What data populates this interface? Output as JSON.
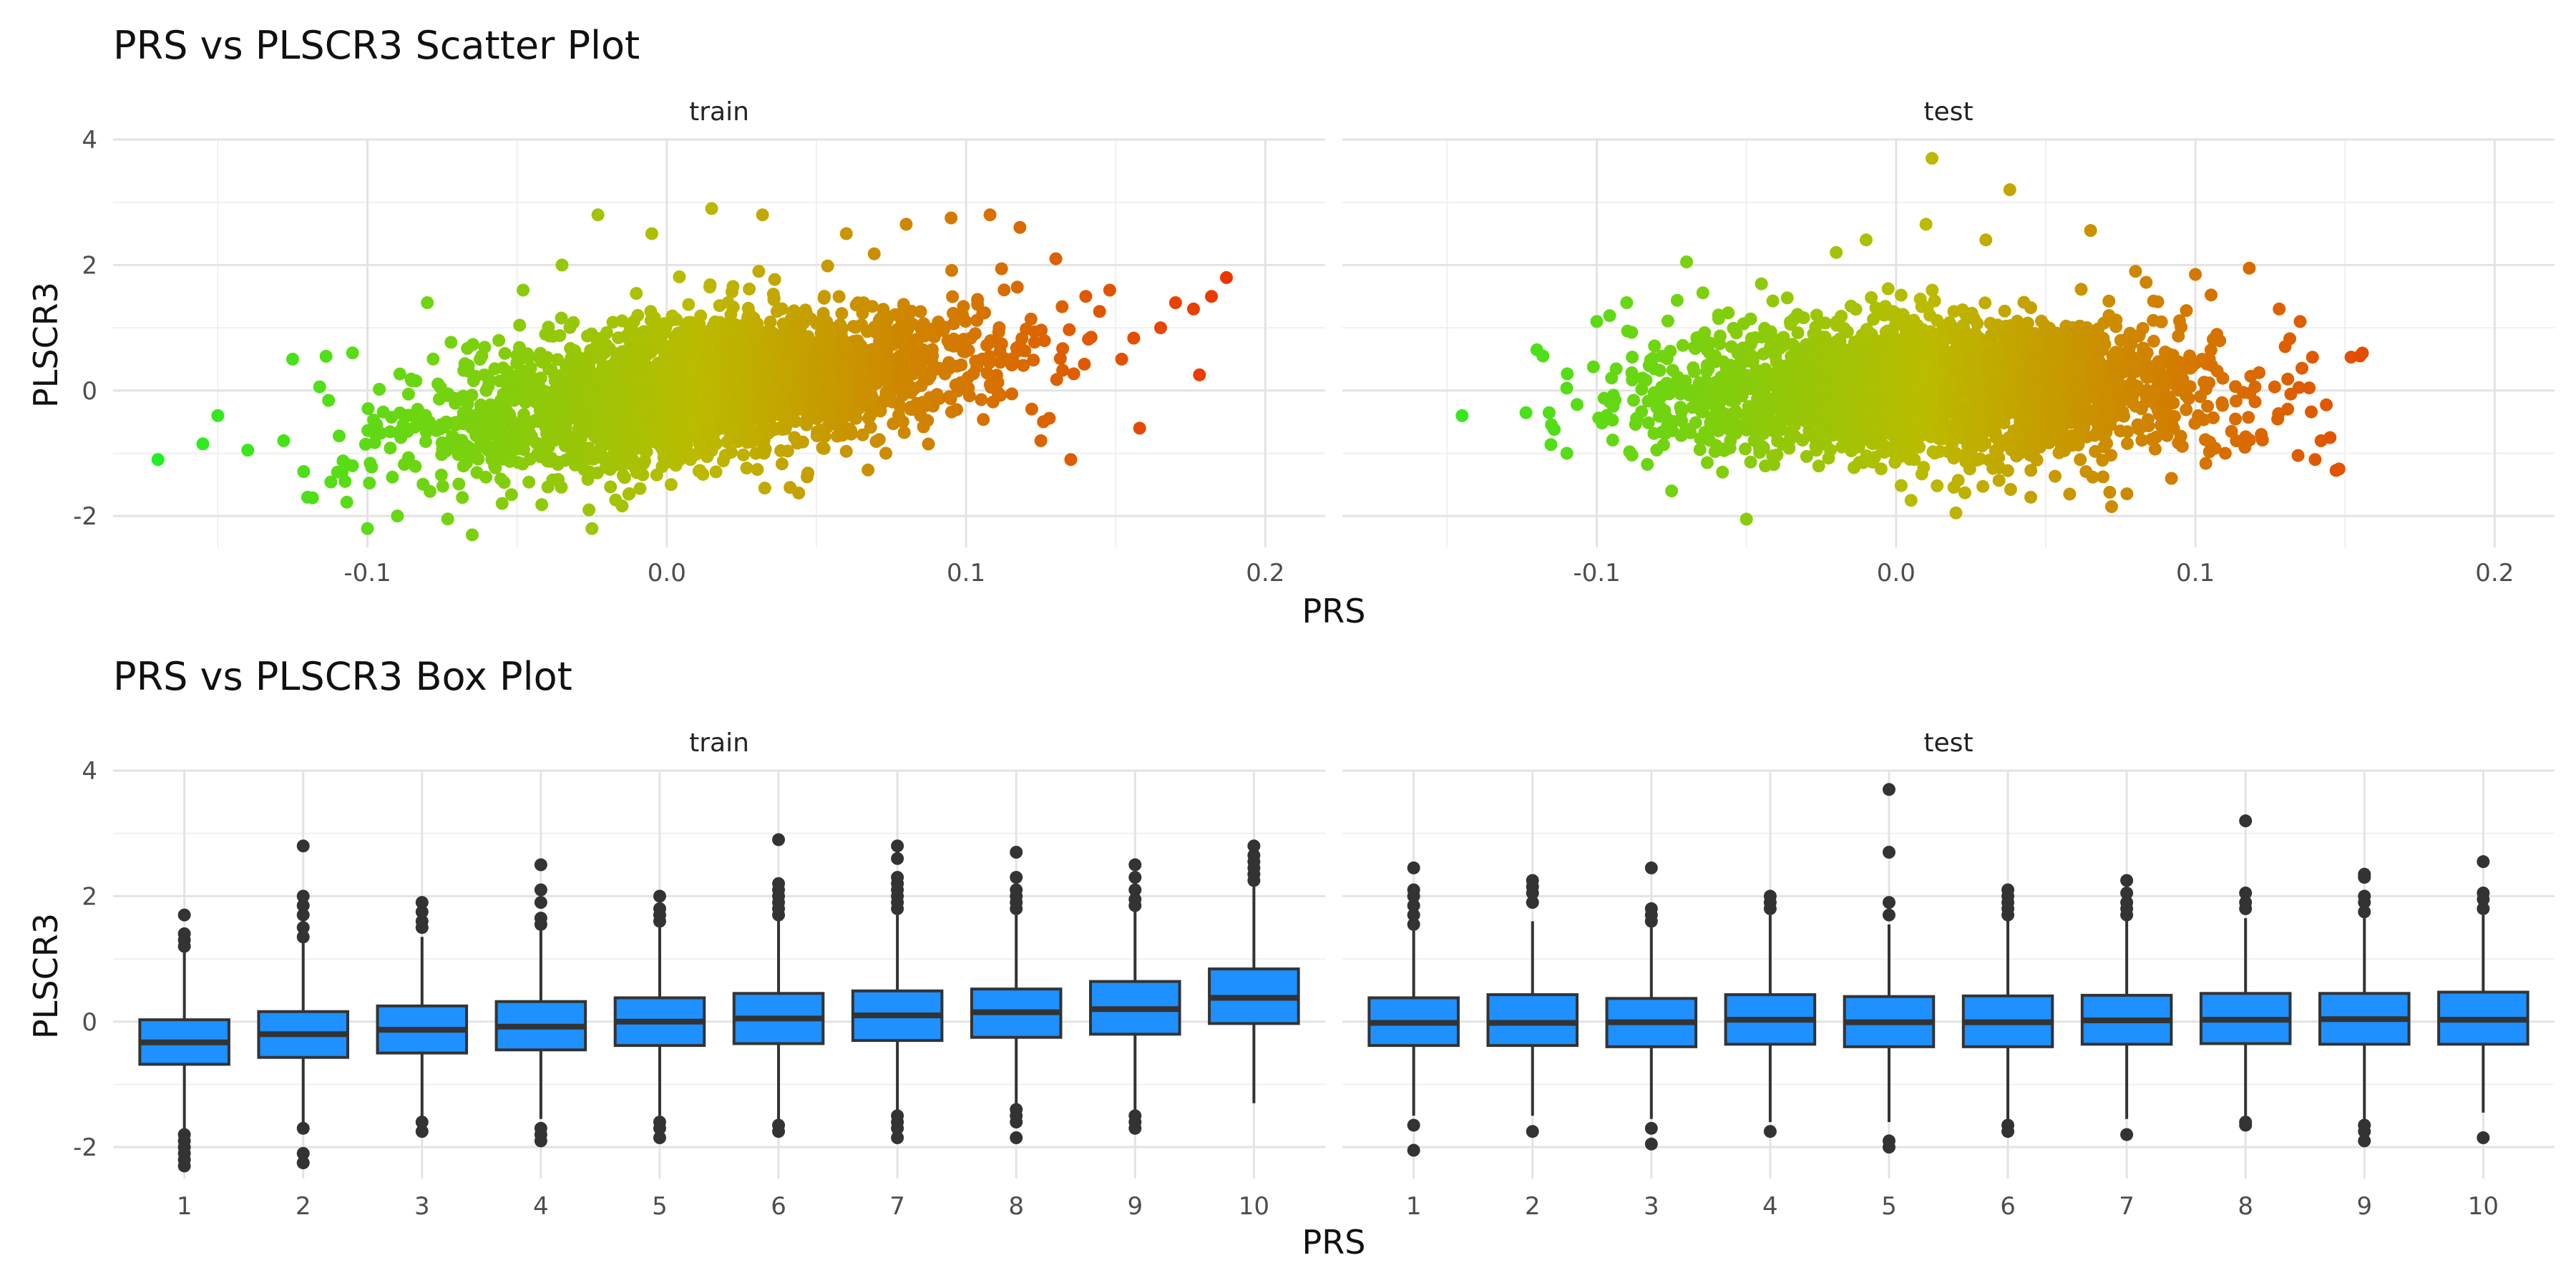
{
  "chart_data": [
    {
      "type": "scatter",
      "title": "PRS vs PLSCR3 Scatter Plot",
      "xlabel": "PRS",
      "ylabel": "PLSCR3",
      "xlim": [
        -0.185,
        0.22
      ],
      "ylim": [
        -2.5,
        4
      ],
      "xticks": [
        -0.1,
        0.0,
        0.1,
        0.2
      ],
      "xtick_labels": [
        "-0.1",
        "0.0",
        "0.1",
        "0.2"
      ],
      "yticks": [
        -2,
        0,
        2,
        4
      ],
      "ytick_labels": [
        "-2",
        "0",
        "2",
        "4"
      ],
      "color_scale": {
        "low": "#22ee22",
        "mid": "#bbbb00",
        "high": "#ee3300",
        "variable": "PRS"
      },
      "grid": true,
      "legend": "none",
      "panels": [
        {
          "name": "train",
          "trend": {
            "intercept": -0.05,
            "slope": 6.5,
            "sd": 0.55
          },
          "points": [
            [
              -0.17,
              -1.1
            ],
            [
              -0.155,
              -0.85
            ],
            [
              -0.15,
              -0.4
            ],
            [
              -0.14,
              -0.95
            ],
            [
              -0.128,
              -0.8
            ],
            [
              -0.125,
              0.5
            ],
            [
              -0.12,
              -1.7
            ],
            [
              -0.11,
              -1.3
            ],
            [
              -0.105,
              0.6
            ],
            [
              -0.1,
              -2.2
            ],
            [
              -0.09,
              -2.0
            ],
            [
              -0.08,
              1.4
            ],
            [
              -0.065,
              -2.3
            ],
            [
              -0.055,
              -1.8
            ],
            [
              -0.048,
              1.6
            ],
            [
              -0.035,
              2.0
            ],
            [
              -0.025,
              -2.2
            ],
            [
              -0.023,
              2.8
            ],
            [
              -0.005,
              2.5
            ],
            [
              0.015,
              2.9
            ],
            [
              0.032,
              2.8
            ],
            [
              0.06,
              2.5
            ],
            [
              0.08,
              2.65
            ],
            [
              0.095,
              2.75
            ],
            [
              0.108,
              2.8
            ],
            [
              0.118,
              2.6
            ],
            [
              0.125,
              -0.8
            ],
            [
              0.13,
              2.1
            ],
            [
              0.135,
              -1.1
            ],
            [
              0.14,
              1.5
            ],
            [
              0.148,
              1.6
            ],
            [
              0.152,
              0.5
            ],
            [
              0.158,
              -0.6
            ],
            [
              0.165,
              1.0
            ],
            [
              0.17,
              1.4
            ],
            [
              0.176,
              1.3
            ],
            [
              0.178,
              0.25
            ],
            [
              0.182,
              1.5
            ],
            [
              0.187,
              1.8
            ]
          ]
        },
        {
          "name": "test",
          "trend": {
            "intercept": 0.0,
            "slope": 0.5,
            "sd": 0.55
          },
          "points": [
            [
              -0.145,
              -0.4
            ],
            [
              -0.12,
              0.65
            ],
            [
              -0.118,
              0.55
            ],
            [
              -0.11,
              -1.0
            ],
            [
              -0.1,
              1.1
            ],
            [
              -0.09,
              1.4
            ],
            [
              -0.075,
              -1.6
            ],
            [
              -0.07,
              2.05
            ],
            [
              -0.058,
              -1.3
            ],
            [
              -0.05,
              -2.05
            ],
            [
              -0.045,
              1.7
            ],
            [
              -0.02,
              2.2
            ],
            [
              -0.01,
              2.4
            ],
            [
              0.005,
              -1.75
            ],
            [
              0.01,
              2.65
            ],
            [
              0.012,
              3.7
            ],
            [
              0.02,
              -1.95
            ],
            [
              0.03,
              2.4
            ],
            [
              0.038,
              3.2
            ],
            [
              0.045,
              -1.7
            ],
            [
              0.058,
              -1.65
            ],
            [
              0.065,
              2.55
            ],
            [
              0.072,
              -1.85
            ],
            [
              0.08,
              1.9
            ],
            [
              0.092,
              -1.4
            ],
            [
              0.1,
              1.85
            ],
            [
              0.11,
              -1.0
            ],
            [
              0.118,
              1.95
            ],
            [
              0.122,
              -0.7
            ],
            [
              0.128,
              1.3
            ],
            [
              0.13,
              0.7
            ],
            [
              0.135,
              1.1
            ],
            [
              0.14,
              -1.1
            ],
            [
              0.142,
              -0.8
            ],
            [
              0.145,
              -0.75
            ],
            [
              0.148,
              -1.25
            ],
            [
              0.155,
              0.55
            ]
          ]
        }
      ]
    },
    {
      "type": "box",
      "title": "PRS vs PLSCR3 Box Plot",
      "xlabel": "PRS",
      "ylabel": "PLSCR3",
      "categories": [
        "1",
        "2",
        "3",
        "4",
        "5",
        "6",
        "7",
        "8",
        "9",
        "10"
      ],
      "ylim": [
        -2.5,
        4
      ],
      "yticks": [
        -2,
        0,
        2,
        4
      ],
      "ytick_labels": [
        "-2",
        "0",
        "2",
        "4"
      ],
      "fill": "#1e90ff",
      "grid": true,
      "panels": [
        {
          "name": "train",
          "boxes": [
            {
              "q1": -0.68,
              "median": -0.33,
              "q3": 0.03,
              "whisker_low": -1.72,
              "whisker_high": 1.1,
              "outliers_low": [
                -1.8,
                -1.9,
                -2.0,
                -2.1,
                -2.2,
                -2.3
              ],
              "outliers_high": [
                1.2,
                1.3,
                1.4,
                1.7
              ]
            },
            {
              "q1": -0.57,
              "median": -0.2,
              "q3": 0.16,
              "whisker_low": -1.65,
              "whisker_high": 1.25,
              "outliers_low": [
                -1.7,
                -2.1,
                -2.25
              ],
              "outliers_high": [
                1.35,
                1.5,
                1.7,
                1.85,
                2.0,
                2.8
              ]
            },
            {
              "q1": -0.5,
              "median": -0.13,
              "q3": 0.25,
              "whisker_low": -1.55,
              "whisker_high": 1.35,
              "outliers_low": [
                -1.6,
                -1.75
              ],
              "outliers_high": [
                1.5,
                1.6,
                1.75,
                1.9
              ]
            },
            {
              "q1": -0.45,
              "median": -0.08,
              "q3": 0.32,
              "whisker_low": -1.55,
              "whisker_high": 1.45,
              "outliers_low": [
                -1.7,
                -1.8,
                -1.9
              ],
              "outliers_high": [
                1.55,
                1.65,
                1.9,
                2.1,
                2.5
              ]
            },
            {
              "q1": -0.38,
              "median": 0.0,
              "q3": 0.38,
              "whisker_low": -1.5,
              "whisker_high": 1.5,
              "outliers_low": [
                -1.6,
                -1.7,
                -1.85
              ],
              "outliers_high": [
                1.6,
                1.7,
                1.8,
                2.0
              ]
            },
            {
              "q1": -0.35,
              "median": 0.05,
              "q3": 0.45,
              "whisker_low": -1.55,
              "whisker_high": 1.6,
              "outliers_low": [
                -1.65,
                -1.75
              ],
              "outliers_high": [
                1.7,
                1.8,
                1.9,
                2.0,
                2.1,
                2.2,
                2.9
              ]
            },
            {
              "q1": -0.3,
              "median": 0.1,
              "q3": 0.49,
              "whisker_low": -1.45,
              "whisker_high": 1.7,
              "outliers_low": [
                -1.5,
                -1.6,
                -1.7,
                -1.85
              ],
              "outliers_high": [
                1.8,
                1.9,
                2.0,
                2.1,
                2.2,
                2.3,
                2.6,
                2.8
              ]
            },
            {
              "q1": -0.25,
              "median": 0.15,
              "q3": 0.52,
              "whisker_low": -1.35,
              "whisker_high": 1.7,
              "outliers_low": [
                -1.4,
                -1.5,
                -1.6,
                -1.85
              ],
              "outliers_high": [
                1.8,
                1.9,
                2.0,
                2.1,
                2.3,
                2.7
              ]
            },
            {
              "q1": -0.2,
              "median": 0.2,
              "q3": 0.64,
              "whisker_low": -1.4,
              "whisker_high": 1.8,
              "outliers_low": [
                -1.5,
                -1.6,
                -1.7
              ],
              "outliers_high": [
                1.85,
                1.95,
                2.1,
                2.3,
                2.5
              ]
            },
            {
              "q1": -0.03,
              "median": 0.38,
              "q3": 0.84,
              "whisker_low": -1.3,
              "whisker_high": 2.15,
              "outliers_low": [],
              "outliers_high": [
                2.25,
                2.35,
                2.45,
                2.55,
                2.65,
                2.8
              ]
            }
          ]
        },
        {
          "name": "test",
          "boxes": [
            {
              "q1": -0.38,
              "median": -0.02,
              "q3": 0.38,
              "whisker_low": -1.5,
              "whisker_high": 1.45,
              "outliers_low": [
                -1.65,
                -2.05
              ],
              "outliers_high": [
                1.55,
                1.7,
                1.85,
                2.0,
                2.1,
                2.45
              ]
            },
            {
              "q1": -0.38,
              "median": -0.02,
              "q3": 0.43,
              "whisker_low": -1.5,
              "whisker_high": 1.6,
              "outliers_low": [
                -1.75
              ],
              "outliers_high": [
                1.9,
                2.05,
                2.15,
                2.25
              ]
            },
            {
              "q1": -0.4,
              "median": -0.01,
              "q3": 0.37,
              "whisker_low": -1.55,
              "whisker_high": 1.5,
              "outliers_low": [
                -1.7,
                -1.95
              ],
              "outliers_high": [
                1.6,
                1.7,
                1.8,
                2.45
              ]
            },
            {
              "q1": -0.36,
              "median": 0.03,
              "q3": 0.43,
              "whisker_low": -1.6,
              "whisker_high": 1.7,
              "outliers_low": [
                -1.75
              ],
              "outliers_high": [
                1.8,
                1.9,
                2.0
              ]
            },
            {
              "q1": -0.4,
              "median": -0.01,
              "q3": 0.4,
              "whisker_low": -1.6,
              "whisker_high": 1.55,
              "outliers_low": [
                -1.9,
                -2.0
              ],
              "outliers_high": [
                1.7,
                1.9,
                2.7,
                3.7
              ]
            },
            {
              "q1": -0.4,
              "median": -0.01,
              "q3": 0.41,
              "whisker_low": -1.55,
              "whisker_high": 1.6,
              "outliers_low": [
                -1.65,
                -1.75
              ],
              "outliers_high": [
                1.7,
                1.8,
                1.9,
                2.0,
                2.1
              ]
            },
            {
              "q1": -0.36,
              "median": 0.02,
              "q3": 0.42,
              "whisker_low": -1.55,
              "whisker_high": 1.6,
              "outliers_low": [
                -1.8
              ],
              "outliers_high": [
                1.7,
                1.8,
                1.9,
                2.05,
                2.25
              ]
            },
            {
              "q1": -0.35,
              "median": 0.03,
              "q3": 0.45,
              "whisker_low": -1.5,
              "whisker_high": 1.65,
              "outliers_low": [
                -1.6,
                -1.65
              ],
              "outliers_high": [
                1.8,
                1.9,
                2.05,
                3.2
              ]
            },
            {
              "q1": -0.36,
              "median": 0.04,
              "q3": 0.45,
              "whisker_low": -1.55,
              "whisker_high": 1.65,
              "outliers_low": [
                -1.65,
                -1.75,
                -1.9
              ],
              "outliers_high": [
                1.75,
                1.9,
                2.0,
                2.3,
                2.35
              ]
            },
            {
              "q1": -0.36,
              "median": 0.03,
              "q3": 0.47,
              "whisker_low": -1.45,
              "whisker_high": 1.7,
              "outliers_low": [
                -1.85
              ],
              "outliers_high": [
                1.8,
                1.95,
                2.05,
                2.55
              ]
            }
          ]
        }
      ]
    }
  ]
}
